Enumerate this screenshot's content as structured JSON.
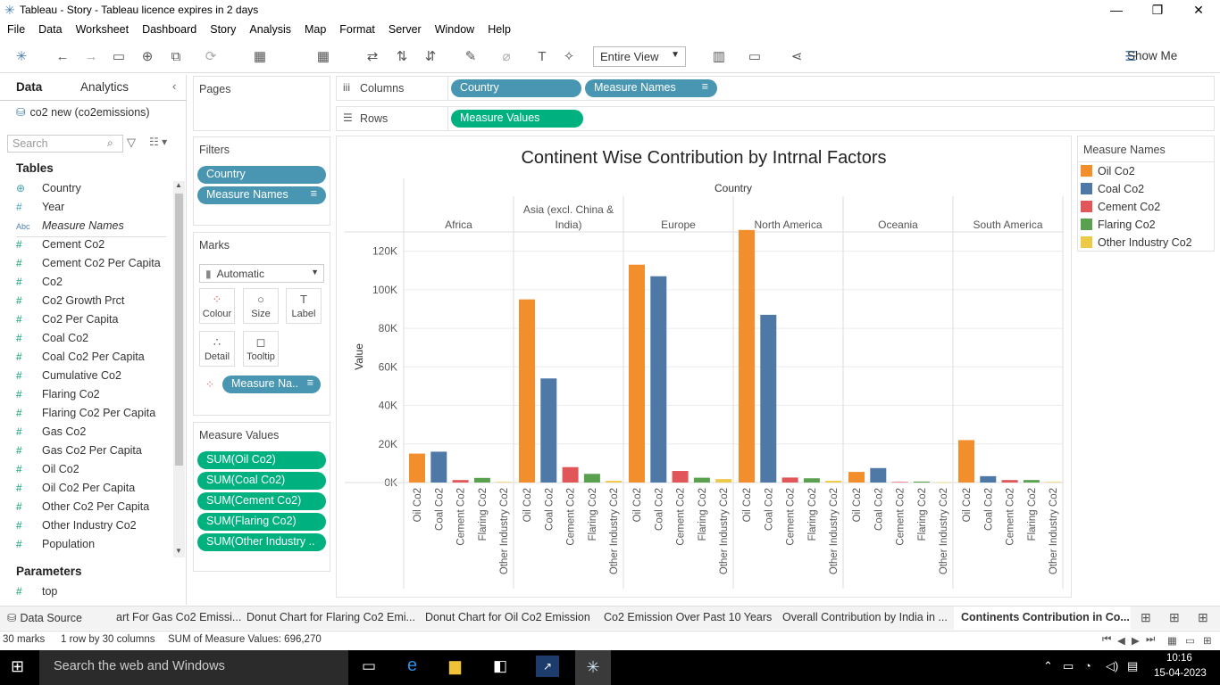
{
  "window": {
    "title": "Tableau - Story - Tableau licence expires in 2 days"
  },
  "menu": [
    "File",
    "Data",
    "Worksheet",
    "Dashboard",
    "Story",
    "Analysis",
    "Map",
    "Format",
    "Server",
    "Window",
    "Help"
  ],
  "toolbar": {
    "view_mode": "Entire View",
    "show_me": "Show Me"
  },
  "data_pane": {
    "tab_data": "Data",
    "tab_analytics": "Analytics",
    "datasource": "co2 new (co2emissions)",
    "search_placeholder": "Search",
    "tables_heading": "Tables",
    "fields": [
      {
        "type": "globe",
        "name": "Country",
        "kind": "dim"
      },
      {
        "type": "#",
        "name": "Year",
        "kind": "dim"
      },
      {
        "type": "Abc",
        "name": "Measure Names",
        "kind": "dim"
      },
      {
        "type": "#",
        "name": "Cement Co2",
        "kind": "meas"
      },
      {
        "type": "#",
        "name": "Cement Co2 Per Capita",
        "kind": "meas"
      },
      {
        "type": "#",
        "name": "Co2",
        "kind": "meas"
      },
      {
        "type": "#",
        "name": "Co2 Growth Prct",
        "kind": "meas"
      },
      {
        "type": "#",
        "name": "Co2 Per Capita",
        "kind": "meas"
      },
      {
        "type": "#",
        "name": "Coal Co2",
        "kind": "meas"
      },
      {
        "type": "#",
        "name": "Coal Co2 Per Capita",
        "kind": "meas"
      },
      {
        "type": "#",
        "name": "Cumulative Co2",
        "kind": "meas"
      },
      {
        "type": "#",
        "name": "Flaring Co2",
        "kind": "meas"
      },
      {
        "type": "#",
        "name": "Flaring Co2 Per Capita",
        "kind": "meas"
      },
      {
        "type": "#",
        "name": "Gas Co2",
        "kind": "meas"
      },
      {
        "type": "#",
        "name": "Gas Co2 Per Capita",
        "kind": "meas"
      },
      {
        "type": "#",
        "name": "Oil Co2",
        "kind": "meas"
      },
      {
        "type": "#",
        "name": "Oil Co2 Per Capita",
        "kind": "meas"
      },
      {
        "type": "#",
        "name": "Other Co2 Per Capita",
        "kind": "meas"
      },
      {
        "type": "#",
        "name": "Other Industry Co2",
        "kind": "meas"
      },
      {
        "type": "#",
        "name": "Population",
        "kind": "meas"
      }
    ],
    "parameters_heading": "Parameters",
    "parameters": [
      {
        "type": "#",
        "name": "top"
      }
    ]
  },
  "pages": {
    "title": "Pages"
  },
  "filters": {
    "title": "Filters",
    "pills": [
      "Country",
      "Measure Names"
    ]
  },
  "marks": {
    "title": "Marks",
    "type": "Automatic",
    "buttons": [
      "Colour",
      "Size",
      "Label",
      "Detail",
      "Tooltip"
    ],
    "color_pill": "Measure Na.."
  },
  "measure_values": {
    "title": "Measure Values",
    "pills": [
      "SUM(Oil Co2)",
      "SUM(Coal Co2)",
      "SUM(Cement Co2)",
      "SUM(Flaring Co2)",
      "SUM(Other Industry .."
    ]
  },
  "shelves": {
    "columns_label": "Columns",
    "rows_label": "Rows",
    "columns": [
      "Country",
      "Measure Names"
    ],
    "rows": [
      "Measure Values"
    ]
  },
  "legend": {
    "title": "Measure Names",
    "items": [
      {
        "name": "Oil Co2",
        "color": "#f28e2b"
      },
      {
        "name": "Coal Co2",
        "color": "#4e79a7"
      },
      {
        "name": "Cement Co2",
        "color": "#e15759"
      },
      {
        "name": "Flaring Co2",
        "color": "#59a14f"
      },
      {
        "name": "Other Industry Co2",
        "color": "#edc948"
      }
    ]
  },
  "chart_data": {
    "type": "bar",
    "title": "Continent Wise Contribution by Intrnal Factors",
    "column_header": "Country",
    "ylabel": "Value",
    "ylim": [
      0,
      130000
    ],
    "yticks": [
      0,
      20000,
      40000,
      60000,
      80000,
      100000,
      120000
    ],
    "ytick_labels": [
      "0K",
      "20K",
      "40K",
      "60K",
      "80K",
      "100K",
      "120K"
    ],
    "groups": [
      "Africa",
      "Asia (excl. China & India)",
      "Europe",
      "North America",
      "Oceania",
      "South America"
    ],
    "measures": [
      "Oil Co2",
      "Coal Co2",
      "Cement Co2",
      "Flaring Co2",
      "Other Industry Co2"
    ],
    "series": [
      {
        "name": "Africa",
        "values": [
          15000,
          16000,
          1300,
          2400,
          300
        ]
      },
      {
        "name": "Asia (excl. China & India)",
        "values": [
          95000,
          54000,
          8000,
          4500,
          900
        ]
      },
      {
        "name": "Europe",
        "values": [
          113000,
          107000,
          6000,
          2500,
          1800
        ]
      },
      {
        "name": "North America",
        "values": [
          131000,
          87000,
          2600,
          2200,
          900
        ]
      },
      {
        "name": "Oceania",
        "values": [
          5500,
          7500,
          300,
          500,
          100
        ]
      },
      {
        "name": "South America",
        "values": [
          22000,
          3300,
          1300,
          1300,
          300
        ]
      }
    ]
  },
  "sheet_tabs": {
    "data_source": "Data Source",
    "tabs": [
      "art For Gas Co2 Emissi...",
      "Donut Chart for Flaring Co2 Emi...",
      "Donut Chart for Oil Co2 Emission",
      "Co2 Emission Over Past 10 Years",
      "Overall Contribution by India in ...",
      "Continents Contribution in Co..."
    ]
  },
  "status": {
    "marks": "30 marks",
    "layout": "1 row by 30 columns",
    "sum": "SUM of Measure Values: 696,270"
  },
  "taskbar": {
    "search": "Search the web and Windows",
    "time": "10:16",
    "date": "15-04-2023"
  }
}
